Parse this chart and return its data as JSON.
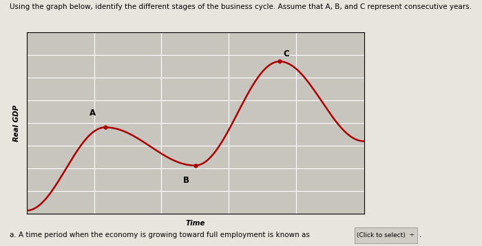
{
  "title": "Using the graph below, identify the different stages of the business cycle. Assume that A, B, and C represent consecutive years.",
  "xlabel": "Time",
  "ylabel": "Real GDP",
  "curve_color": "#aa0000",
  "curve_linewidth": 1.8,
  "background_color": "#e8e4de",
  "plot_bg_color": "#c8c4be",
  "grid_color": "#b0aca6",
  "point_A_label": "A",
  "point_B_label": "B",
  "point_C_label": "C",
  "footer_text": "a. A time period when the economy is growing toward full employment is known as",
  "button_text": "(Click to select)  ÷",
  "title_fontsize": 7.5,
  "label_fontsize": 7.5,
  "annotation_fontsize": 8.5,
  "footer_fontsize": 7.5
}
